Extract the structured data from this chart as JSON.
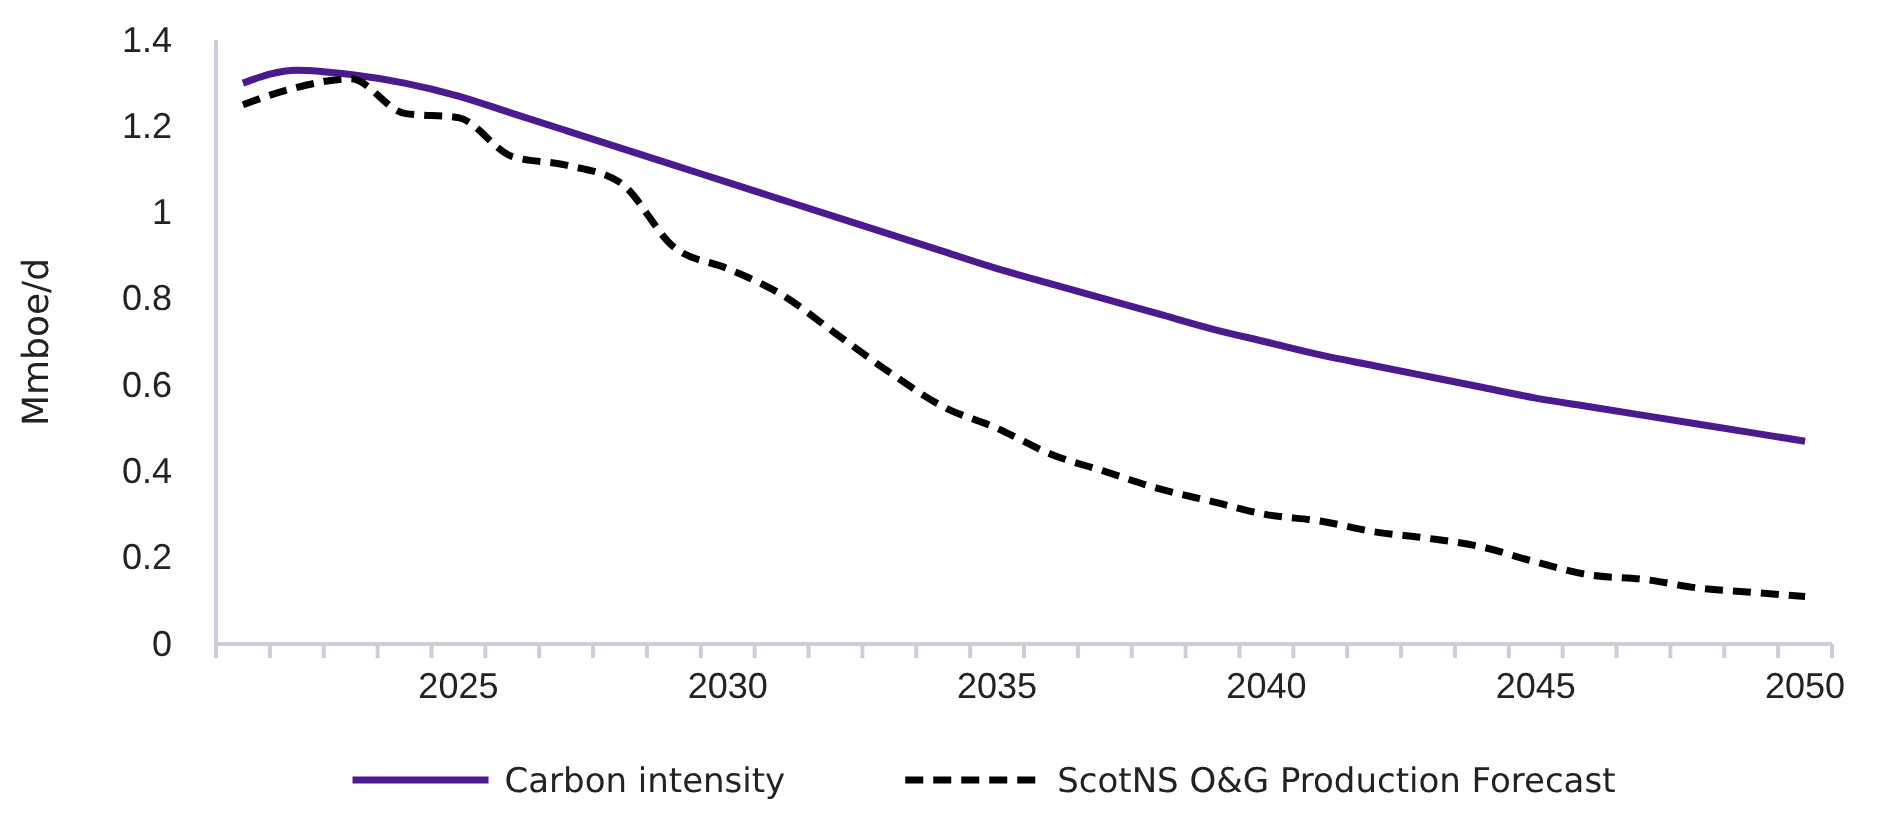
{
  "chart_data": {
    "type": "line",
    "ylabel": "Mmboe/d",
    "categories": [
      null,
      null,
      null,
      null,
      "2025",
      null,
      null,
      null,
      null,
      "2030",
      null,
      null,
      null,
      null,
      "2035",
      null,
      null,
      null,
      null,
      "2040",
      null,
      null,
      null,
      null,
      "2045",
      null,
      null,
      null,
      null,
      "2050"
    ],
    "series": [
      {
        "name": "Carbon intensity",
        "color": "#4b1a8f",
        "line_style": "solid",
        "values": [
          1.3,
          1.33,
          1.32,
          1.3,
          1.27,
          1.23,
          1.19,
          1.15,
          1.11,
          1.07,
          1.03,
          0.99,
          0.95,
          0.91,
          0.87,
          0.835,
          0.8,
          0.765,
          0.73,
          0.7,
          0.67,
          0.645,
          0.62,
          0.595,
          0.57,
          0.55,
          0.53,
          0.51,
          0.49,
          0.47
        ]
      },
      {
        "name": "ScotNS O&G Production Forecast",
        "color": "#000000",
        "line_style": "dashed",
        "values": [
          1.25,
          1.29,
          1.31,
          1.23,
          1.22,
          1.13,
          1.11,
          1.07,
          0.92,
          0.87,
          0.81,
          0.72,
          0.63,
          0.55,
          0.5,
          0.44,
          0.4,
          0.36,
          0.33,
          0.3,
          0.285,
          0.26,
          0.245,
          0.225,
          0.19,
          0.16,
          0.15,
          0.13,
          0.12,
          0.11
        ]
      }
    ],
    "ylim": [
      0,
      1.4
    ],
    "yticks": [
      0,
      0.2,
      0.4,
      0.6,
      0.8,
      1,
      1.2,
      1.4
    ],
    "grid": false,
    "legend": "bottom",
    "marker": "none"
  }
}
